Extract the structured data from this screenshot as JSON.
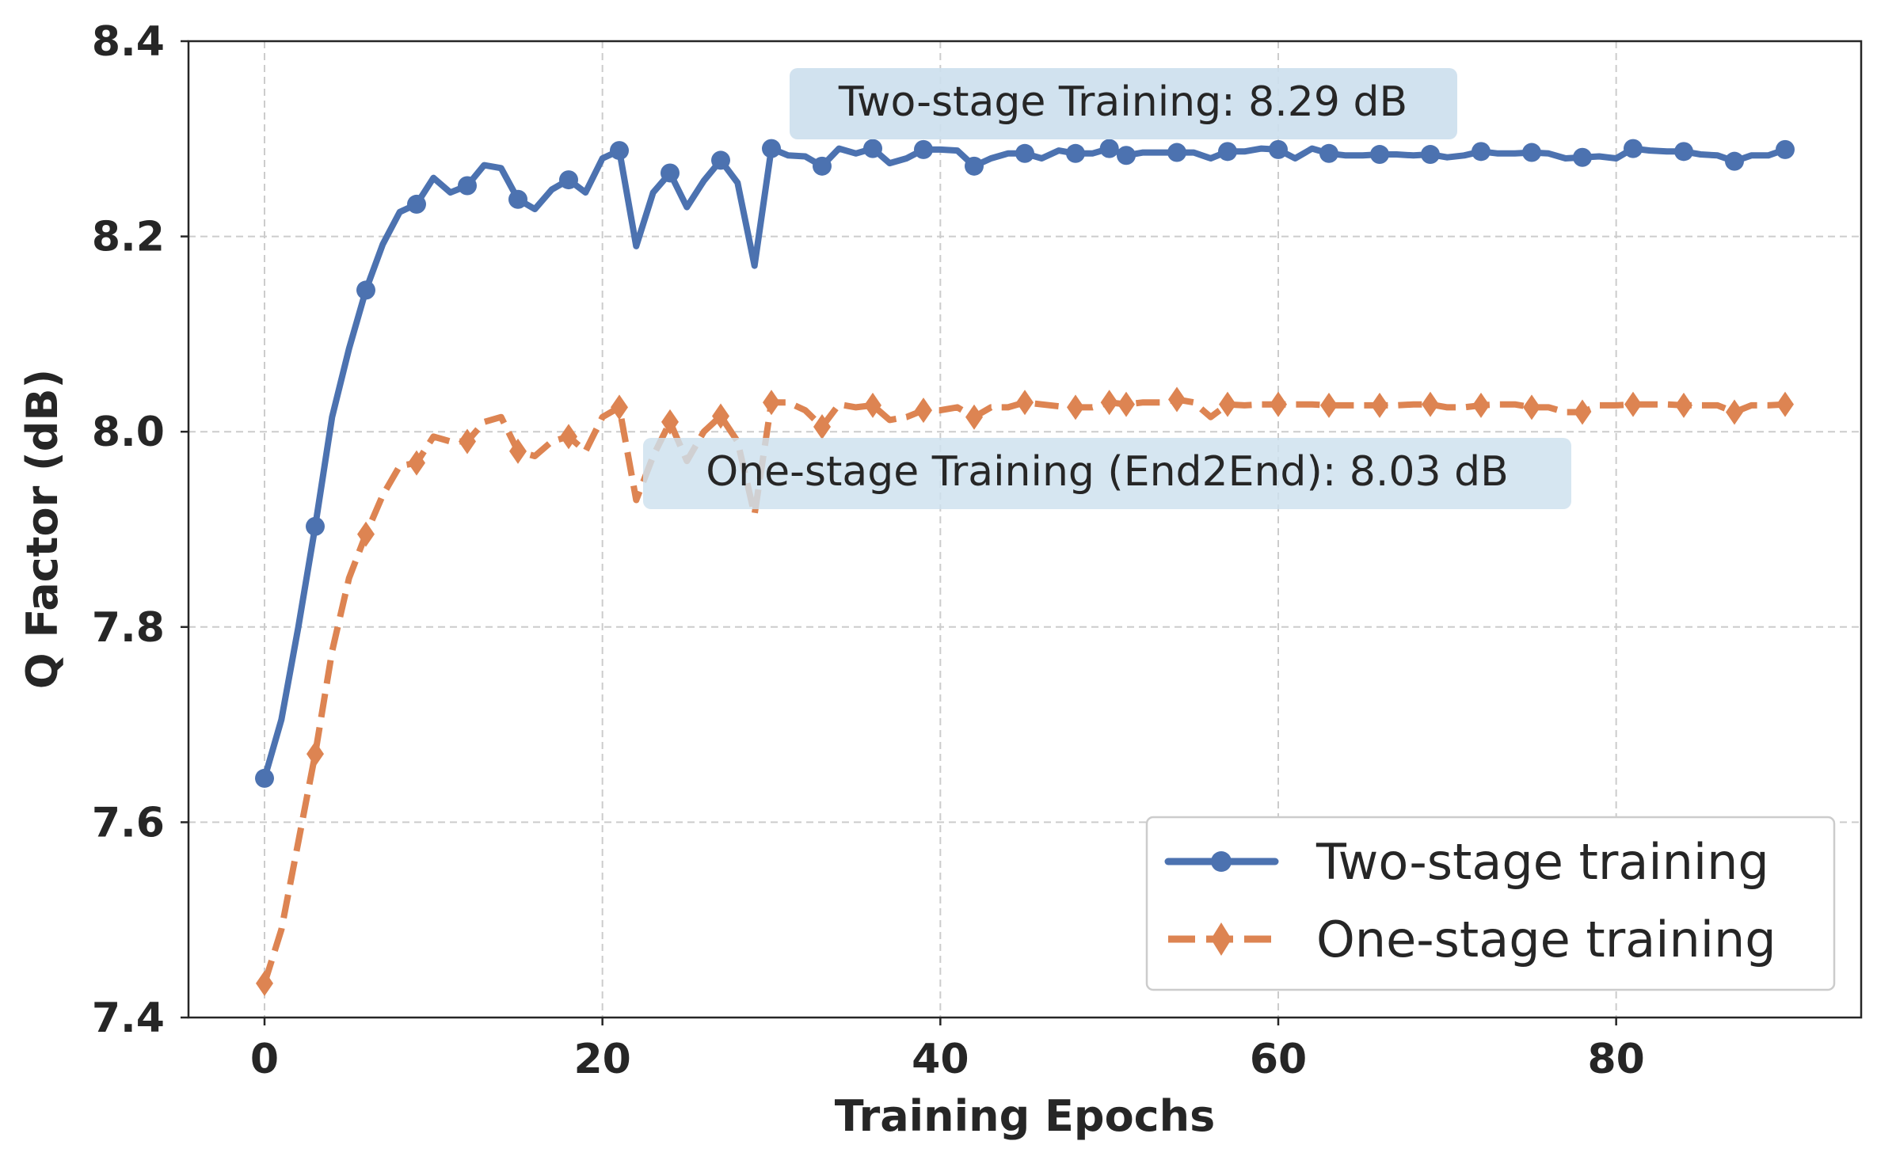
{
  "chart_data": {
    "type": "line",
    "title": "",
    "xlabel": "Training Epochs",
    "ylabel": "Q Factor (dB)",
    "xlim": [
      -4.5,
      94.5
    ],
    "ylim": [
      7.4,
      8.4
    ],
    "xticks": [
      0,
      20,
      40,
      60,
      80
    ],
    "yticks": [
      7.4,
      7.6,
      7.8,
      8.0,
      8.2,
      8.4
    ],
    "xtick_labels": [
      "0",
      "20",
      "40",
      "60",
      "80"
    ],
    "ytick_labels": [
      "7.4",
      "7.6",
      "7.8",
      "8.0",
      "8.2",
      "8.4"
    ],
    "grid": true,
    "legend_position": "lower-right",
    "annotations": [
      {
        "text": "Two-stage Training: 8.29 dB",
        "x": 51,
        "y": 8.33
      },
      {
        "text": "One-stage Training (End2End): 8.03 dB",
        "x": 50,
        "y": 7.955
      }
    ],
    "series": [
      {
        "name": "Two-stage training",
        "color": "#4c72b0",
        "style": "solid",
        "marker": "circle",
        "x": [
          0,
          1,
          2,
          3,
          4,
          5,
          6,
          7,
          8,
          9,
          10,
          11,
          12,
          13,
          14,
          15,
          16,
          17,
          18,
          19,
          20,
          21,
          22,
          23,
          24,
          25,
          26,
          27,
          28,
          29,
          30,
          31,
          32,
          33,
          34,
          35,
          36,
          37,
          38,
          39,
          40,
          41,
          42,
          43,
          44,
          45,
          46,
          47,
          48,
          49,
          50,
          51,
          52,
          53,
          54,
          55,
          56,
          57,
          58,
          59,
          60,
          61,
          62,
          63,
          64,
          65,
          66,
          67,
          68,
          69,
          70,
          71,
          72,
          73,
          74,
          75,
          76,
          77,
          78,
          79,
          80,
          81,
          82,
          83,
          84,
          85,
          86,
          87,
          88,
          89,
          90
        ],
        "y": [
          7.645,
          7.705,
          7.8,
          7.903,
          8.015,
          8.085,
          8.145,
          8.192,
          8.225,
          8.233,
          8.26,
          8.245,
          8.252,
          8.273,
          8.27,
          8.238,
          8.228,
          8.248,
          8.258,
          8.245,
          8.28,
          8.288,
          8.19,
          8.245,
          8.265,
          8.23,
          8.257,
          8.278,
          8.255,
          8.17,
          8.29,
          8.283,
          8.282,
          8.272,
          8.29,
          8.285,
          8.29,
          8.275,
          8.28,
          8.289,
          8.289,
          8.288,
          8.272,
          8.28,
          8.285,
          8.285,
          8.28,
          8.288,
          8.285,
          8.285,
          8.29,
          8.283,
          8.286,
          8.286,
          8.286,
          8.286,
          8.28,
          8.287,
          8.287,
          8.29,
          8.289,
          8.28,
          8.29,
          8.285,
          8.283,
          8.283,
          8.284,
          8.284,
          8.283,
          8.284,
          8.281,
          8.283,
          8.287,
          8.285,
          8.285,
          8.286,
          8.285,
          8.28,
          8.281,
          8.282,
          8.28,
          8.29,
          8.288,
          8.287,
          8.287,
          8.284,
          8.283,
          8.277,
          8.283,
          8.283,
          8.289
        ]
      },
      {
        "name": "One-stage training",
        "color": "#dd8452",
        "style": "dashed",
        "marker": "diamond",
        "x": [
          0,
          1,
          2,
          3,
          4,
          5,
          6,
          7,
          8,
          9,
          10,
          11,
          12,
          13,
          14,
          15,
          16,
          17,
          18,
          19,
          20,
          21,
          22,
          23,
          24,
          25,
          26,
          27,
          28,
          29,
          30,
          31,
          32,
          33,
          34,
          35,
          36,
          37,
          38,
          39,
          40,
          41,
          42,
          43,
          44,
          45,
          46,
          47,
          48,
          49,
          50,
          51,
          52,
          53,
          54,
          55,
          56,
          57,
          58,
          59,
          60,
          61,
          62,
          63,
          64,
          65,
          66,
          67,
          68,
          69,
          70,
          71,
          72,
          73,
          74,
          75,
          76,
          77,
          78,
          79,
          80,
          81,
          82,
          83,
          84,
          85,
          86,
          87,
          88,
          89,
          90
        ],
        "y": [
          7.435,
          7.49,
          7.58,
          7.67,
          7.775,
          7.85,
          7.895,
          7.935,
          7.965,
          7.968,
          7.995,
          7.99,
          7.99,
          8.01,
          8.015,
          7.98,
          7.975,
          7.99,
          7.995,
          7.98,
          8.015,
          8.025,
          7.93,
          7.975,
          8.01,
          7.97,
          8.0,
          8.016,
          7.99,
          7.915,
          8.03,
          8.03,
          8.022,
          8.005,
          8.028,
          8.025,
          8.027,
          8.012,
          8.015,
          8.022,
          8.022,
          8.025,
          8.015,
          8.025,
          8.025,
          8.03,
          8.028,
          8.026,
          8.025,
          8.025,
          8.03,
          8.028,
          8.03,
          8.03,
          8.033,
          8.03,
          8.015,
          8.028,
          8.027,
          8.028,
          8.028,
          8.028,
          8.028,
          8.027,
          8.027,
          8.027,
          8.027,
          8.027,
          8.028,
          8.028,
          8.025,
          8.025,
          8.027,
          8.028,
          8.028,
          8.025,
          8.025,
          8.02,
          8.02,
          8.027,
          8.027,
          8.028,
          8.028,
          8.028,
          8.027,
          8.027,
          8.027,
          8.02,
          8.027,
          8.027,
          8.028
        ],
        "marked_x": [
          0,
          3,
          6,
          9,
          12,
          15,
          18,
          21,
          24,
          27,
          30,
          33,
          36,
          39,
          42,
          45,
          48,
          50,
          51,
          54,
          57,
          60,
          63,
          66,
          69,
          72,
          75,
          78,
          81,
          84,
          87,
          90
        ]
      }
    ]
  }
}
